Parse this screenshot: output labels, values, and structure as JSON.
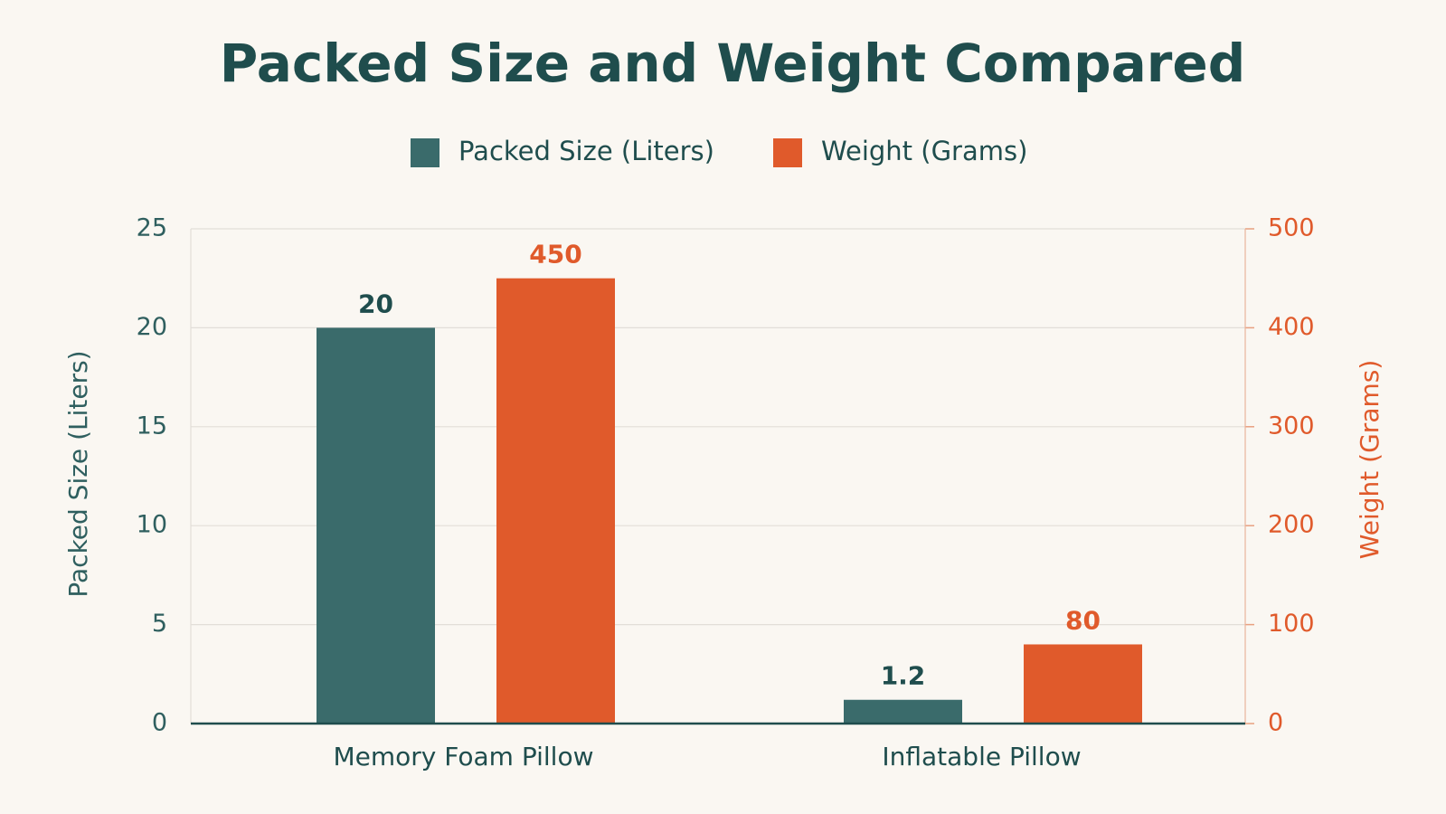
{
  "chart_data": {
    "type": "bar",
    "title": "Packed Size and Weight Compared",
    "categories": [
      "Memory Foam Pillow",
      "Inflatable Pillow"
    ],
    "series": [
      {
        "name": "Packed Size (Liters)",
        "color": "#3a6b6b",
        "values": [
          20,
          1.2
        ]
      },
      {
        "name": "Weight (Grams)",
        "color": "#e05a2b",
        "values": [
          450,
          80
        ],
        "axis": "y2"
      }
    ],
    "ylabel": "Packed Size (Liters)",
    "y2label": "Weight (Grams)",
    "ylim": [
      0,
      25
    ],
    "yticks": [
      0,
      5,
      10,
      15,
      20,
      25
    ],
    "y2lim": [
      0,
      500
    ],
    "y2ticks": [
      0,
      100,
      200,
      300,
      400,
      500
    ],
    "grid": true,
    "legend": "top"
  }
}
